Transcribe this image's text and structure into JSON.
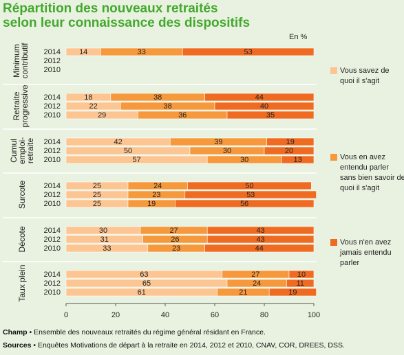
{
  "title_line1": "Répartition des nouveaux retraités",
  "title_line2": "selon leur connaissance des dispositifs",
  "unit": "En %",
  "colors": {
    "c1": "#fcc592",
    "c2": "#f6983c",
    "c3": "#ef6b22",
    "bg": "#e9f2e0",
    "title": "#43a82e"
  },
  "legend": [
    {
      "label": "Vous savez de quoi il s'agit",
      "color": "#fcc592"
    },
    {
      "label": "Vous en avez entendu parler sans bien savoir de quoi il s'agit",
      "color": "#f6983c"
    },
    {
      "label": "Vous n'en avez jamais entendu parler",
      "color": "#ef6b22"
    }
  ],
  "chart_data": {
    "type": "bar",
    "orientation": "horizontal",
    "stacked": true,
    "xlim": [
      0,
      100
    ],
    "xticks": [
      0,
      20,
      40,
      60,
      80,
      100
    ],
    "years": [
      "2014",
      "2012",
      "2010"
    ],
    "groups": [
      {
        "name": "Minimum contributif",
        "label_lines": [
          "Minimum",
          "contributif"
        ],
        "rows": [
          {
            "year": "2014",
            "values": [
              14,
              33,
              53
            ]
          },
          {
            "year": "2012",
            "values": null
          },
          {
            "year": "2010",
            "values": null
          }
        ]
      },
      {
        "name": "Retraite progressive",
        "label_lines": [
          "Retraite",
          "progressive"
        ],
        "rows": [
          {
            "year": "2014",
            "values": [
              18,
              38,
              44
            ]
          },
          {
            "year": "2012",
            "values": [
              22,
              38,
              40
            ]
          },
          {
            "year": "2010",
            "values": [
              29,
              36,
              35
            ]
          }
        ]
      },
      {
        "name": "Cumul emploi-retraite",
        "label_lines": [
          "Cumul",
          "emploi-",
          "retraite"
        ],
        "rows": [
          {
            "year": "2014",
            "values": [
              42,
              39,
              19
            ]
          },
          {
            "year": "2012",
            "values": [
              50,
              30,
              20
            ]
          },
          {
            "year": "2010",
            "values": [
              57,
              30,
              13
            ]
          }
        ]
      },
      {
        "name": "Surcote",
        "label_lines": [
          "Surcote"
        ],
        "rows": [
          {
            "year": "2014",
            "values": [
              25,
              24,
              50
            ]
          },
          {
            "year": "2012",
            "values": [
              25,
              23,
              53
            ]
          },
          {
            "year": "2010",
            "values": [
              25,
              19,
              56
            ]
          }
        ]
      },
      {
        "name": "Décote",
        "label_lines": [
          "Décote"
        ],
        "rows": [
          {
            "year": "2014",
            "values": [
              30,
              27,
              43
            ]
          },
          {
            "year": "2012",
            "values": [
              31,
              26,
              43
            ]
          },
          {
            "year": "2010",
            "values": [
              33,
              23,
              44
            ]
          }
        ]
      },
      {
        "name": "Taux plein",
        "label_lines": [
          "Taux plein"
        ],
        "rows": [
          {
            "year": "2014",
            "values": [
              63,
              27,
              10
            ]
          },
          {
            "year": "2012",
            "values": [
              65,
              24,
              11
            ]
          },
          {
            "year": "2010",
            "values": [
              61,
              21,
              19
            ]
          }
        ]
      }
    ]
  },
  "footer": {
    "champ_label": "Champ",
    "champ_text": " • Ensemble des nouveaux retraités du régime général résidant en France.",
    "sources_label": "Sources",
    "sources_text": " • Enquêtes Motivations de départ à la retraite en 2014, 2012 et 2010, CNAV, COR, DREES, DSS."
  }
}
